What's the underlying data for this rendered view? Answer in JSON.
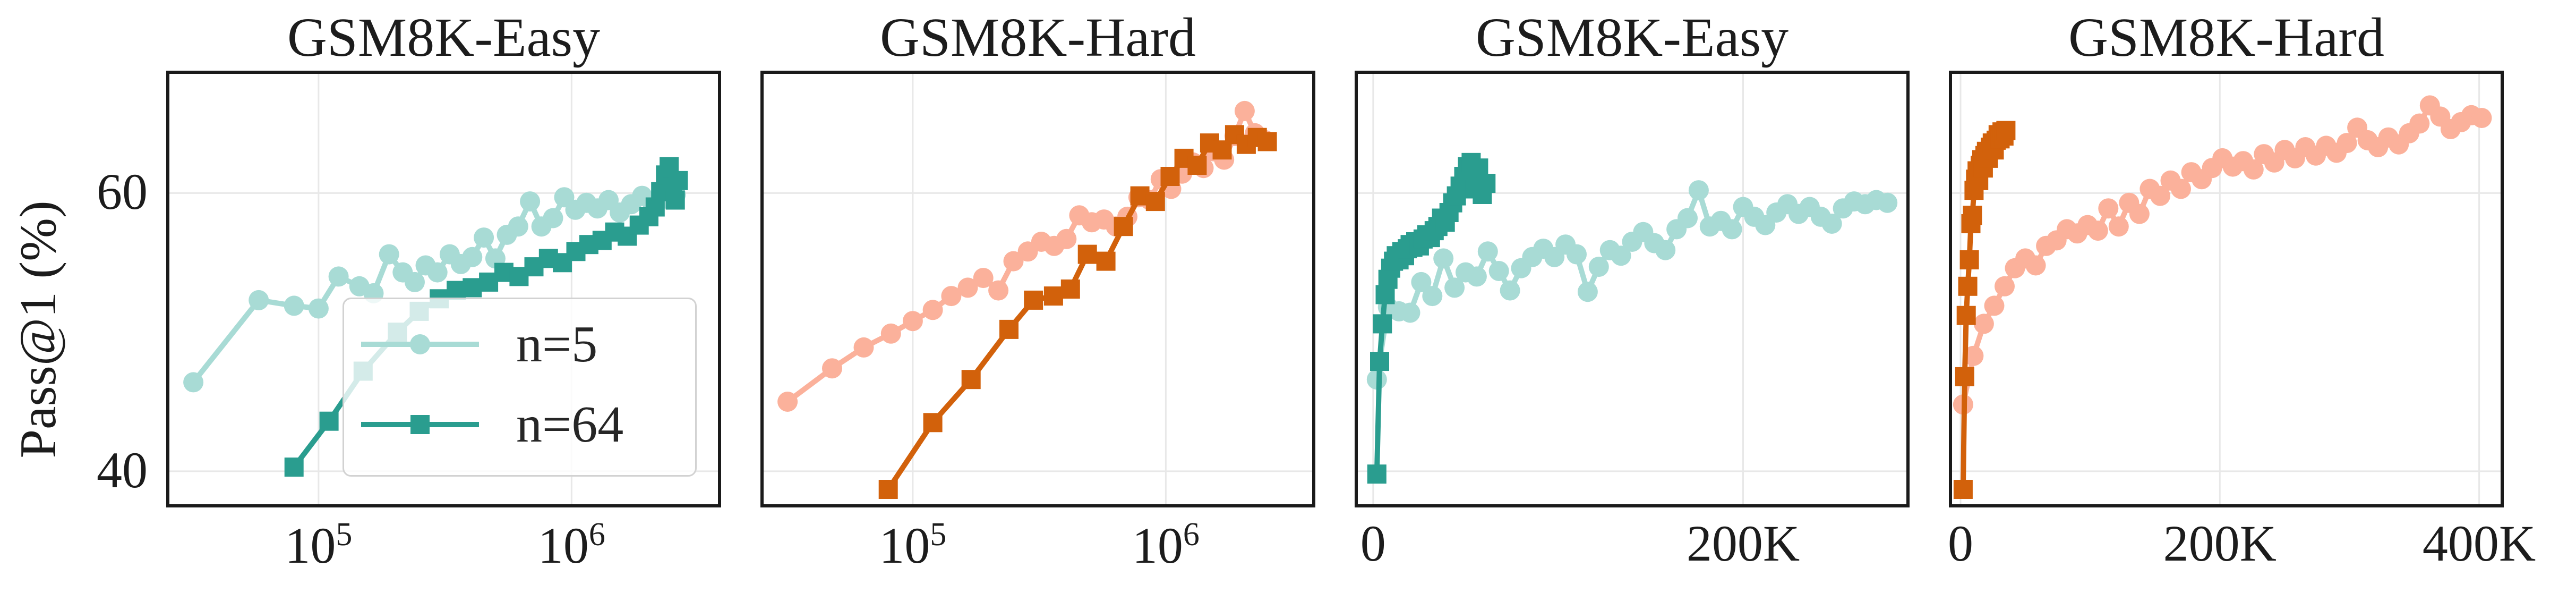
{
  "figure": {
    "ylabel": "Pass@1 (%)",
    "text_color": "#1c1c1c",
    "spine_color": "#1a1a1a",
    "grid_color": "#e8e8e8",
    "background": "#ffffff",
    "legend": {
      "position": "lower right",
      "entries": [
        "n=5",
        "n=64"
      ]
    },
    "colors": {
      "n5_teal": "#a8dbd5",
      "n64_teal": "#2a9d8f",
      "n5_salmon": "#fbb19b",
      "n64_orange": "#d2610b"
    }
  },
  "chart_data": [
    {
      "type": "line",
      "title": "GSM8K-Easy",
      "xscale": "log",
      "xlim": [
        25000,
        3900000
      ],
      "ylim": [
        37.4,
        68.8
      ],
      "ygrid": [
        40,
        60
      ],
      "yticks": [
        {
          "value": 60,
          "text": "60"
        },
        {
          "value": 40,
          "text": "40"
        }
      ],
      "xticks": [
        {
          "value": 100000,
          "base": "10",
          "exp": "5"
        },
        {
          "value": 1000000,
          "base": "10",
          "exp": "6"
        }
      ],
      "legend_visible": true,
      "series": [
        {
          "name": "n=5",
          "color": "#a8dbd5",
          "marker": "circle",
          "x": [
            32000,
            58000,
            80000,
            100000,
            120000,
            145000,
            165000,
            190000,
            215000,
            240000,
            265000,
            295000,
            330000,
            365000,
            405000,
            450000,
            500000,
            555000,
            615000,
            685000,
            760000,
            845000,
            935000,
            1035000,
            1145000,
            1265000,
            1400000,
            1550000,
            1720000,
            1900000,
            2100000,
            2330000,
            2580000
          ],
          "y": [
            46.4,
            52.3,
            51.9,
            51.7,
            54.0,
            53.3,
            52.8,
            55.6,
            54.3,
            53.6,
            54.8,
            54.3,
            55.6,
            54.9,
            55.4,
            56.8,
            55.3,
            57.0,
            57.6,
            59.4,
            57.6,
            58.2,
            59.7,
            58.8,
            59.3,
            58.9,
            59.5,
            58.6,
            59.2,
            59.8,
            59.1,
            59.6,
            59.9
          ]
        },
        {
          "name": "n=64",
          "color": "#2a9d8f",
          "marker": "square",
          "x": [
            80000,
            110000,
            150000,
            205000,
            250000,
            300000,
            350000,
            405000,
            470000,
            540000,
            620000,
            710000,
            810000,
            920000,
            1040000,
            1170000,
            1320000,
            1480000,
            1660000,
            1850000,
            2020000,
            2140000,
            2250000,
            2350000,
            2430000,
            2500000,
            2570000,
            2640000
          ],
          "y": [
            40.3,
            43.6,
            47.2,
            50.0,
            51.5,
            52.4,
            53.0,
            53.2,
            53.6,
            54.3,
            54.0,
            54.7,
            55.3,
            55.0,
            55.8,
            56.3,
            56.6,
            57.2,
            56.9,
            57.7,
            58.3,
            59.0,
            60.1,
            61.3,
            61.9,
            60.4,
            59.5,
            60.9
          ]
        }
      ]
    },
    {
      "type": "line",
      "title": "GSM8K-Hard",
      "xscale": "log",
      "xlim": [
        25000,
        3900000
      ],
      "ylim": [
        37.4,
        68.8
      ],
      "ygrid": [
        40,
        60
      ],
      "yticks": [],
      "xticks": [
        {
          "value": 100000,
          "base": "10",
          "exp": "5"
        },
        {
          "value": 1000000,
          "base": "10",
          "exp": "6"
        }
      ],
      "legend_visible": false,
      "series": [
        {
          "name": "n=5",
          "color": "#fbb19b",
          "marker": "circle",
          "x": [
            32000,
            48000,
            64000,
            82000,
            100000,
            120000,
            142000,
            165000,
            190000,
            218000,
            250000,
            285000,
            322000,
            362000,
            405000,
            455000,
            510000,
            570000,
            635000,
            705000,
            780000,
            865000,
            955000,
            1050000,
            1160000,
            1280000,
            1410000,
            1550000,
            1700000,
            1870000,
            2050000,
            2250000,
            2470000
          ],
          "y": [
            45.0,
            47.4,
            48.9,
            49.9,
            50.8,
            51.6,
            52.6,
            53.2,
            53.9,
            53.0,
            55.1,
            55.8,
            56.5,
            56.2,
            56.7,
            58.4,
            57.9,
            58.1,
            57.6,
            58.3,
            59.7,
            59.5,
            61.0,
            60.3,
            61.4,
            62.2,
            61.8,
            63.0,
            62.4,
            64.1,
            65.9,
            64.3,
            63.8
          ]
        },
        {
          "name": "n=64",
          "color": "#d2610b",
          "marker": "square",
          "x": [
            80000,
            120000,
            170000,
            240000,
            300000,
            360000,
            420000,
            490000,
            580000,
            680000,
            790000,
            910000,
            1040000,
            1180000,
            1330000,
            1490000,
            1670000,
            1870000,
            2080000,
            2300000,
            2520000
          ],
          "y": [
            38.7,
            43.5,
            46.6,
            50.2,
            52.3,
            52.6,
            53.1,
            55.6,
            55.1,
            57.6,
            59.8,
            59.4,
            61.2,
            62.5,
            62.0,
            63.6,
            63.1,
            64.2,
            63.5,
            64.0,
            63.7
          ]
        }
      ]
    },
    {
      "type": "line",
      "title": "GSM8K-Easy",
      "xscale": "linear",
      "xlim": [
        -10000,
        290000
      ],
      "ylim": [
        37.4,
        68.8
      ],
      "ygrid": [
        40,
        60
      ],
      "yticks": [],
      "xticks": [
        {
          "value": 0,
          "text": "0"
        },
        {
          "value": 200000,
          "text": "200K"
        }
      ],
      "legend_visible": false,
      "series": [
        {
          "name": "n=5",
          "color": "#a8dbd5",
          "marker": "circle",
          "x": [
            2000,
            8000,
            14000,
            20000,
            26000,
            32000,
            38000,
            44000,
            50000,
            56000,
            62000,
            68000,
            74000,
            80000,
            86000,
            92000,
            98000,
            104000,
            110000,
            116000,
            122000,
            128000,
            134000,
            140000,
            146000,
            152000,
            158000,
            164000,
            170000,
            176000,
            182000,
            188000,
            194000,
            200000,
            206000,
            212000,
            218000,
            224000,
            230000,
            236000,
            242000,
            248000,
            254000,
            260000,
            266000,
            272000,
            278000
          ],
          "y": [
            46.6,
            51.8,
            51.5,
            51.4,
            53.6,
            52.6,
            55.3,
            53.2,
            54.3,
            54.0,
            55.8,
            54.4,
            53.0,
            54.6,
            55.4,
            56.0,
            55.4,
            56.3,
            55.6,
            52.9,
            54.7,
            55.9,
            55.5,
            56.5,
            57.2,
            56.4,
            55.9,
            57.4,
            58.2,
            60.2,
            57.6,
            58.0,
            57.4,
            59.0,
            58.3,
            57.7,
            58.6,
            59.2,
            58.5,
            59.0,
            58.3,
            57.8,
            58.9,
            59.4,
            59.2,
            59.5,
            59.3
          ]
        },
        {
          "name": "n=64",
          "color": "#2a9d8f",
          "marker": "square",
          "x": [
            2000,
            3500,
            5000,
            6500,
            8000,
            9500,
            11000,
            12500,
            14000,
            15500,
            17000,
            18500,
            20000,
            21500,
            23000,
            25000,
            27000,
            29000,
            31000,
            33000,
            35000,
            37000,
            39000,
            41000,
            43000,
            45000,
            47000,
            49000,
            51000,
            53000,
            55000,
            57000,
            59000,
            61000
          ],
          "y": [
            39.8,
            47.9,
            50.6,
            52.7,
            53.8,
            54.6,
            55.1,
            55.5,
            55.2,
            55.8,
            55.5,
            56.0,
            56.3,
            56.1,
            56.5,
            56.2,
            56.7,
            57.0,
            56.8,
            57.3,
            57.6,
            58.2,
            57.9,
            58.6,
            59.3,
            59.8,
            60.5,
            61.2,
            61.9,
            62.2,
            60.3,
            61.8,
            59.9,
            60.7
          ]
        }
      ]
    },
    {
      "type": "line",
      "title": "GSM8K-Hard",
      "xscale": "linear",
      "xlim": [
        -9000,
        419000
      ],
      "ylim": [
        37.4,
        68.8
      ],
      "ygrid": [
        40,
        60
      ],
      "yticks": [],
      "xticks": [
        {
          "value": 0,
          "text": "0"
        },
        {
          "value": 200000,
          "text": "200K"
        },
        {
          "value": 400000,
          "text": "400K"
        }
      ],
      "legend_visible": false,
      "series": [
        {
          "name": "n=5",
          "color": "#fbb19b",
          "marker": "circle",
          "x": [
            2000,
            10000,
            18000,
            26000,
            34000,
            42000,
            50000,
            58000,
            66000,
            74000,
            82000,
            90000,
            98000,
            106000,
            114000,
            122000,
            130000,
            138000,
            146000,
            154000,
            162000,
            170000,
            178000,
            186000,
            194000,
            202000,
            210000,
            218000,
            226000,
            234000,
            242000,
            250000,
            258000,
            266000,
            274000,
            282000,
            290000,
            298000,
            306000,
            314000,
            322000,
            330000,
            338000,
            346000,
            354000,
            362000,
            370000,
            378000,
            386000,
            394000,
            402000
          ],
          "y": [
            44.8,
            48.3,
            50.6,
            51.9,
            53.3,
            54.6,
            55.3,
            54.8,
            56.2,
            56.6,
            57.4,
            57.1,
            57.7,
            57.3,
            58.9,
            57.6,
            59.3,
            58.5,
            60.3,
            59.8,
            60.9,
            60.3,
            61.5,
            61.0,
            61.8,
            62.5,
            61.9,
            62.3,
            61.7,
            62.8,
            62.2,
            63.1,
            62.5,
            63.3,
            62.7,
            63.4,
            62.9,
            63.6,
            64.7,
            63.8,
            63.3,
            64.0,
            63.5,
            64.3,
            65.0,
            66.3,
            65.5,
            64.6,
            65.1,
            65.6,
            65.4
          ]
        },
        {
          "name": "n=64",
          "color": "#d2610b",
          "marker": "square",
          "x": [
            2000,
            3200,
            4400,
            5600,
            6800,
            8000,
            9200,
            10400,
            11600,
            12800,
            14000,
            15200,
            16400,
            17600,
            18800,
            20000,
            21500,
            23000,
            24500,
            26000,
            27500,
            29000,
            30500,
            32000,
            33500,
            35000
          ],
          "y": [
            38.7,
            46.8,
            51.2,
            53.3,
            55.2,
            57.8,
            58.4,
            60.2,
            61.0,
            61.6,
            60.9,
            62.0,
            62.4,
            61.8,
            62.7,
            63.0,
            62.5,
            63.3,
            63.6,
            63.1,
            63.8,
            64.2,
            63.9,
            64.4,
            64.1,
            64.5
          ]
        }
      ]
    }
  ]
}
